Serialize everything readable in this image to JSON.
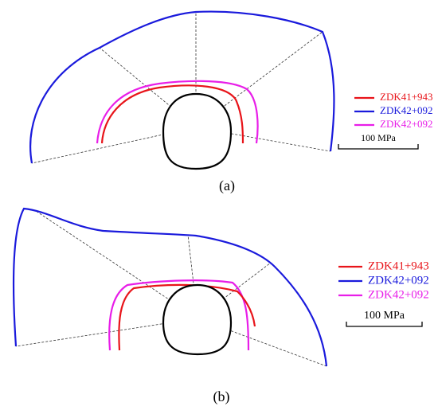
{
  "panels": [
    {
      "label": "(a)",
      "legend": [
        {
          "name": "ZDK41+943",
          "color": "#e8141a"
        },
        {
          "name": "ZDK42+092",
          "color": "#1a1adc"
        },
        {
          "name": "ZDK42+092",
          "color": "#e81ee8"
        }
      ],
      "scale_label": "100 MPa"
    },
    {
      "label": "(b)",
      "legend": [
        {
          "name": "ZDK41+943",
          "color": "#e8141a"
        },
        {
          "name": "ZDK42+092",
          "color": "#1a1adc"
        },
        {
          "name": "ZDK42+092",
          "color": "#e81ee8"
        }
      ],
      "scale_label": "100 MPa"
    }
  ]
}
